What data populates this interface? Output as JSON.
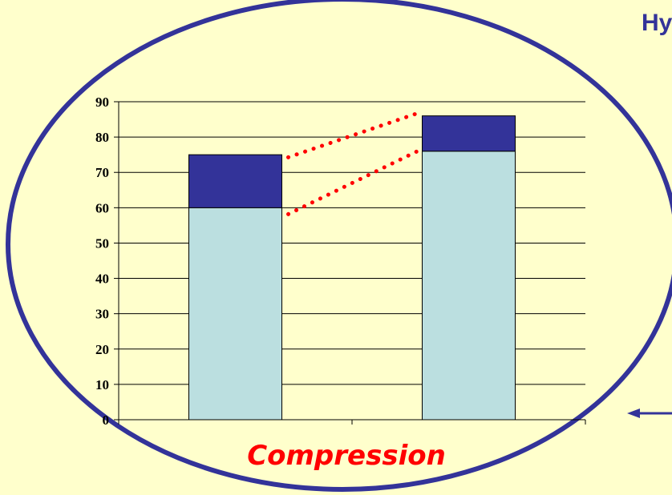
{
  "slide": {
    "partial_title": "Hy",
    "caption": "Compression"
  },
  "colors": {
    "background": "#FFFFCC",
    "ellipse_stroke": "#333399",
    "ellipse_fill": "#FFFFCC",
    "bar_lower": "#BBDFE0",
    "bar_upper": "#333399",
    "connector": "#FF0000",
    "caption": "#FF0000",
    "arrow": "#333399"
  },
  "chart_data": {
    "type": "bar",
    "stacked": true,
    "categories": [
      "",
      ""
    ],
    "series": [
      {
        "values": [
          60,
          76
        ]
      },
      {
        "values": [
          15,
          10
        ]
      }
    ],
    "ylim": [
      0,
      90
    ],
    "yticks": [
      0,
      10,
      20,
      30,
      40,
      50,
      60,
      70,
      80,
      90
    ],
    "title": "",
    "xlabel": "",
    "ylabel": "",
    "grid": true,
    "legend": "none",
    "annotations": [
      "dotted red lines connecting segment tops of bar 1 to bar 2"
    ]
  }
}
